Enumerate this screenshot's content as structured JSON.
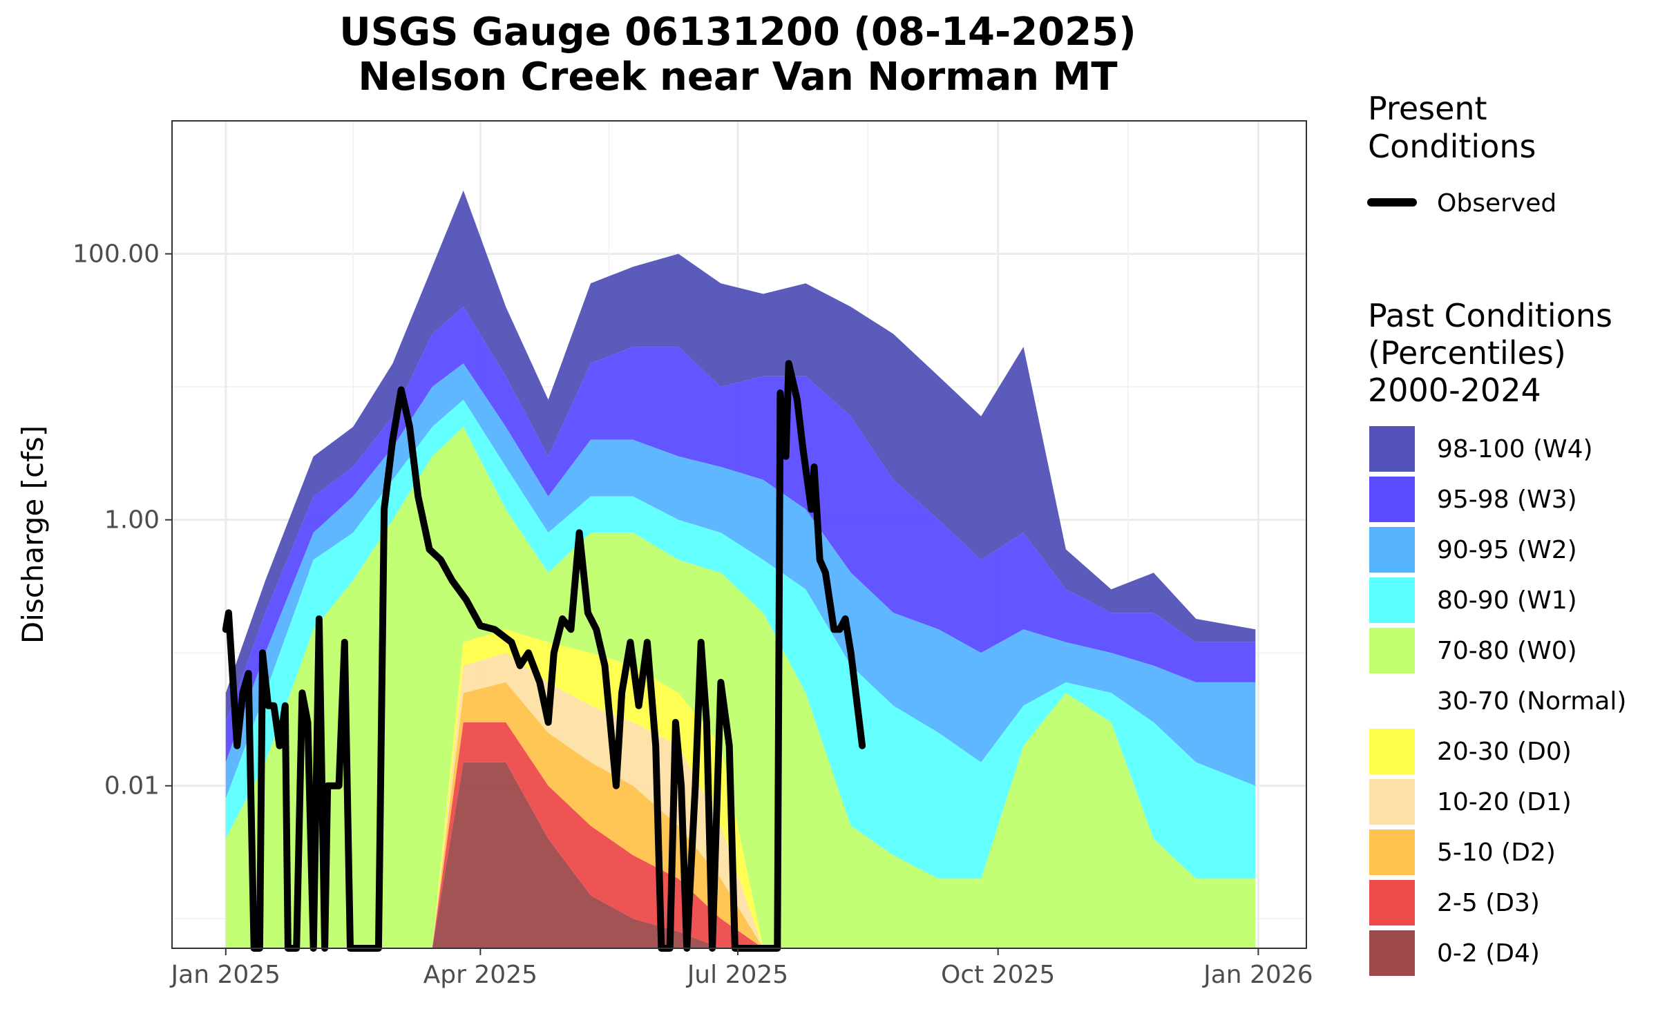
{
  "chart_data": {
    "type": "area",
    "title": "USGS Gauge 06131200 (08-14-2025)",
    "subtitle": "Nelson Creek near Van Norman MT",
    "ylabel": "Discharge [cfs]",
    "xlabel": "",
    "y_scale": "log10",
    "ylim": [
      0.0006,
      1000
    ],
    "xlim": [
      "2024-12-13",
      "2026-01-18"
    ],
    "x_ticks": [
      {
        "date": "2025-01-01",
        "label": "Jan 2025"
      },
      {
        "date": "2025-04-01",
        "label": "Apr 2025"
      },
      {
        "date": "2025-07-01",
        "label": "Jul 2025"
      },
      {
        "date": "2025-10-01",
        "label": "Oct 2025"
      },
      {
        "date": "2026-01-01",
        "label": "Jan 2026"
      }
    ],
    "y_ticks": [
      {
        "value": 0.01,
        "label": "0.01"
      },
      {
        "value": 1,
        "label": "1.00"
      },
      {
        "value": 100,
        "label": "100.00"
      }
    ],
    "grid": true,
    "legend_position": "right",
    "present_legend": {
      "title_lines": [
        "Present",
        "Conditions"
      ],
      "entries": [
        {
          "label": "Observed",
          "color": "#000000"
        }
      ]
    },
    "past_legend": {
      "title_lines": [
        "Past Conditions",
        "(Percentiles)",
        "2000-2024"
      ],
      "entries": [
        {
          "label": "98-100 (W4)",
          "color": "#5252b8"
        },
        {
          "label": "95-98 (W3)",
          "color": "#5b4cff"
        },
        {
          "label": "90-95 (W2)",
          "color": "#56b4ff"
        },
        {
          "label": "80-90 (W1)",
          "color": "#5cffff"
        },
        {
          "label": "70-80 (W0)",
          "color": "#bfff6e"
        },
        {
          "label": "30-70 (Normal)",
          "color": "#ffffff"
        },
        {
          "label": "20-30 (D0)",
          "color": "#ffff4a"
        },
        {
          "label": "10-20 (D1)",
          "color": "#fde0a5"
        },
        {
          "label": "5-10 (D2)",
          "color": "#ffc34d"
        },
        {
          "label": "2-5 (D3)",
          "color": "#ee4b4b"
        },
        {
          "label": "0-2 (D4)",
          "color": "#9e4a4a"
        }
      ]
    },
    "percentile_bands": {
      "dates": [
        "2025-01-01",
        "2025-01-15",
        "2025-02-01",
        "2025-02-15",
        "2025-03-01",
        "2025-03-15",
        "2025-03-26",
        "2025-04-10",
        "2025-04-25",
        "2025-05-10",
        "2025-05-25",
        "2025-06-10",
        "2025-06-25",
        "2025-07-10",
        "2025-07-25",
        "2025-08-10",
        "2025-08-25",
        "2025-09-10",
        "2025-09-25",
        "2025-10-10",
        "2025-10-25",
        "2025-11-10",
        "2025-11-25",
        "2025-12-10",
        "2025-12-31"
      ],
      "p98": [
        0.05,
        0.35,
        3.0,
        5.0,
        15.0,
        80.0,
        300.0,
        40.0,
        8.0,
        60.0,
        80.0,
        100.0,
        60.0,
        50.0,
        60.0,
        40.0,
        25.0,
        12.0,
        6.0,
        20.0,
        0.6,
        0.3,
        0.4,
        0.18,
        0.15
      ],
      "p95": [
        0.03,
        0.2,
        1.5,
        2.5,
        6.0,
        25.0,
        40.0,
        12.0,
        3.0,
        15.0,
        20.0,
        20.0,
        10.0,
        12.0,
        12.0,
        6.0,
        2.0,
        1.0,
        0.5,
        0.8,
        0.3,
        0.2,
        0.2,
        0.12,
        0.12
      ],
      "p90": [
        0.015,
        0.1,
        0.8,
        1.5,
        3.5,
        10.0,
        15.0,
        5.0,
        1.5,
        4.0,
        4.0,
        3.0,
        2.5,
        2.0,
        1.2,
        0.4,
        0.2,
        0.15,
        0.1,
        0.15,
        0.12,
        0.1,
        0.08,
        0.06,
        0.06
      ],
      "p80": [
        0.008,
        0.05,
        0.5,
        0.8,
        2.0,
        5.0,
        8.0,
        2.5,
        0.8,
        1.5,
        1.5,
        1.0,
        0.8,
        0.5,
        0.3,
        0.08,
        0.04,
        0.025,
        0.015,
        0.04,
        0.06,
        0.05,
        0.03,
        0.015,
        0.01
      ],
      "p70": [
        0.004,
        0.015,
        0.15,
        0.35,
        1.0,
        3.0,
        5.0,
        1.2,
        0.4,
        0.8,
        0.8,
        0.5,
        0.4,
        0.2,
        0.05,
        0.005,
        0.003,
        0.002,
        0.002,
        0.02,
        0.05,
        0.03,
        0.004,
        0.002,
        0.002
      ],
      "p30": [
        0.0006,
        0.0006,
        0.0006,
        0.0006,
        0.0006,
        0.0006,
        0.12,
        0.15,
        0.12,
        0.1,
        0.08,
        0.05,
        0.02,
        0.0006,
        0.0006,
        0.0006,
        0.0006,
        0.0006,
        0.0006,
        0.0006,
        0.0006,
        0.0006,
        0.0006,
        0.0006,
        0.0006
      ],
      "p20": [
        0.0006,
        0.0006,
        0.0006,
        0.0006,
        0.0006,
        0.0006,
        0.08,
        0.1,
        0.06,
        0.04,
        0.03,
        0.02,
        0.005,
        0.0006,
        0.0006,
        0.0006,
        0.0006,
        0.0006,
        0.0006,
        0.0006,
        0.0006,
        0.0006,
        0.0006,
        0.0006,
        0.0006
      ],
      "p10": [
        0.0006,
        0.0006,
        0.0006,
        0.0006,
        0.0006,
        0.0006,
        0.05,
        0.06,
        0.025,
        0.015,
        0.01,
        0.005,
        0.002,
        0.0006,
        0.0006,
        0.0006,
        0.0006,
        0.0006,
        0.0006,
        0.0006,
        0.0006,
        0.0006,
        0.0006,
        0.0006,
        0.0006
      ],
      "p5": [
        0.0006,
        0.0006,
        0.0006,
        0.0006,
        0.0006,
        0.0006,
        0.03,
        0.03,
        0.01,
        0.005,
        0.003,
        0.002,
        0.001,
        0.0006,
        0.0006,
        0.0006,
        0.0006,
        0.0006,
        0.0006,
        0.0006,
        0.0006,
        0.0006,
        0.0006,
        0.0006,
        0.0006
      ],
      "p2": [
        0.0006,
        0.0006,
        0.0006,
        0.0006,
        0.0006,
        0.0006,
        0.015,
        0.015,
        0.004,
        0.0015,
        0.001,
        0.0008,
        0.0006,
        0.0006,
        0.0006,
        0.0006,
        0.0006,
        0.0006,
        0.0006,
        0.0006,
        0.0006,
        0.0006,
        0.0006,
        0.0006,
        0.0006
      ]
    },
    "series": [
      {
        "name": "Observed",
        "color": "#000000",
        "points": [
          [
            "2025-01-01",
            0.15
          ],
          [
            "2025-01-02",
            0.2
          ],
          [
            "2025-01-05",
            0.02
          ],
          [
            "2025-01-07",
            0.05
          ],
          [
            "2025-01-09",
            0.07
          ],
          [
            "2025-01-11",
            0.0006
          ],
          [
            "2025-01-13",
            0.0006
          ],
          [
            "2025-01-14",
            0.1
          ],
          [
            "2025-01-16",
            0.04
          ],
          [
            "2025-01-18",
            0.04
          ],
          [
            "2025-01-20",
            0.02
          ],
          [
            "2025-01-22",
            0.04
          ],
          [
            "2025-01-23",
            0.0006
          ],
          [
            "2025-01-26",
            0.0006
          ],
          [
            "2025-01-28",
            0.05
          ],
          [
            "2025-01-30",
            0.03
          ],
          [
            "2025-02-01",
            0.0006
          ],
          [
            "2025-02-03",
            0.18
          ],
          [
            "2025-02-05",
            0.0006
          ],
          [
            "2025-02-06",
            0.01
          ],
          [
            "2025-02-10",
            0.01
          ],
          [
            "2025-02-12",
            0.12
          ],
          [
            "2025-02-14",
            0.0006
          ],
          [
            "2025-02-24",
            0.0006
          ],
          [
            "2025-02-26",
            1.2
          ],
          [
            "2025-03-01",
            4.0
          ],
          [
            "2025-03-04",
            9.5
          ],
          [
            "2025-03-07",
            5.0
          ],
          [
            "2025-03-10",
            1.5
          ],
          [
            "2025-03-14",
            0.6
          ],
          [
            "2025-03-18",
            0.5
          ],
          [
            "2025-03-22",
            0.35
          ],
          [
            "2025-03-27",
            0.25
          ],
          [
            "2025-04-01",
            0.16
          ],
          [
            "2025-04-06",
            0.15
          ],
          [
            "2025-04-12",
            0.12
          ],
          [
            "2025-04-15",
            0.08
          ],
          [
            "2025-04-18",
            0.1
          ],
          [
            "2025-04-22",
            0.06
          ],
          [
            "2025-04-25",
            0.03
          ],
          [
            "2025-04-27",
            0.1
          ],
          [
            "2025-04-30",
            0.18
          ],
          [
            "2025-05-03",
            0.15
          ],
          [
            "2025-05-06",
            0.8
          ],
          [
            "2025-05-09",
            0.2
          ],
          [
            "2025-05-12",
            0.15
          ],
          [
            "2025-05-15",
            0.08
          ],
          [
            "2025-05-19",
            0.01
          ],
          [
            "2025-05-21",
            0.05
          ],
          [
            "2025-05-24",
            0.12
          ],
          [
            "2025-05-27",
            0.04
          ],
          [
            "2025-05-30",
            0.12
          ],
          [
            "2025-06-02",
            0.02
          ],
          [
            "2025-06-04",
            0.0006
          ],
          [
            "2025-06-07",
            0.0006
          ],
          [
            "2025-06-09",
            0.03
          ],
          [
            "2025-06-11",
            0.01
          ],
          [
            "2025-06-13",
            0.0006
          ],
          [
            "2025-06-16",
            0.01
          ],
          [
            "2025-06-18",
            0.12
          ],
          [
            "2025-06-20",
            0.03
          ],
          [
            "2025-06-22",
            0.0006
          ],
          [
            "2025-06-25",
            0.06
          ],
          [
            "2025-06-28",
            0.02
          ],
          [
            "2025-06-30",
            0.0006
          ],
          [
            "2025-07-15",
            0.0006
          ],
          [
            "2025-07-16",
            9.0
          ],
          [
            "2025-07-18",
            3.0
          ],
          [
            "2025-07-19",
            15.0
          ],
          [
            "2025-07-22",
            8.0
          ],
          [
            "2025-07-24",
            3.5
          ],
          [
            "2025-07-27",
            1.2
          ],
          [
            "2025-07-28",
            2.5
          ],
          [
            "2025-07-30",
            0.5
          ],
          [
            "2025-08-01",
            0.4
          ],
          [
            "2025-08-04",
            0.15
          ],
          [
            "2025-08-06",
            0.15
          ],
          [
            "2025-08-08",
            0.18
          ],
          [
            "2025-08-10",
            0.1
          ],
          [
            "2025-08-14",
            0.02
          ]
        ]
      }
    ]
  }
}
